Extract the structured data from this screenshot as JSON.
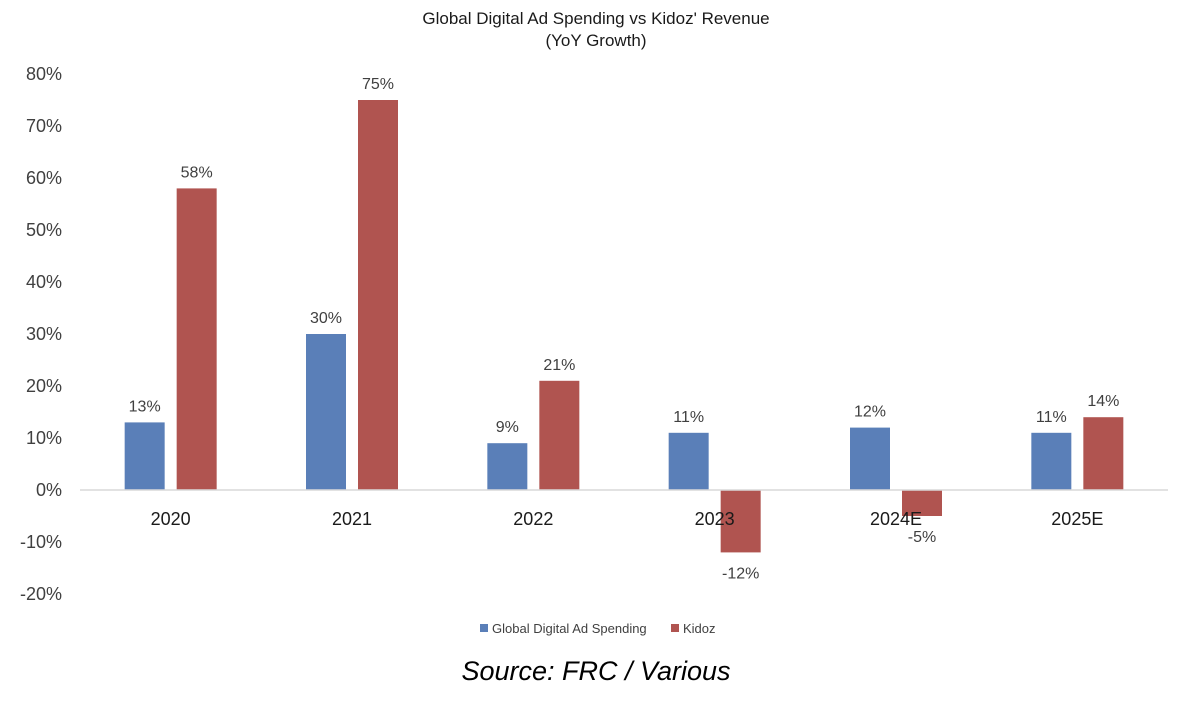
{
  "chart_data": {
    "type": "bar",
    "title": "Global Digital Ad Spending vs Kidoz' Revenue",
    "subtitle": "(YoY  Growth)",
    "categories": [
      "2020",
      "2021",
      "2022",
      "2023",
      "2024E",
      "2025E"
    ],
    "series": [
      {
        "name": "Global Digital Ad Spending",
        "color": "#5a7fb8",
        "values": [
          13,
          30,
          9,
          11,
          12,
          11
        ],
        "labels": [
          "13%",
          "30%",
          "9%",
          "11%",
          "12%",
          "11%"
        ]
      },
      {
        "name": "Kidoz",
        "color": "#b05450",
        "values": [
          58,
          75,
          21,
          -12,
          -5,
          14
        ],
        "labels": [
          "58%",
          "75%",
          "21%",
          "-12%",
          "-5%",
          "14%"
        ]
      }
    ],
    "ylim": [
      -20,
      80
    ],
    "yticks": [
      80,
      70,
      60,
      50,
      40,
      30,
      20,
      10,
      0,
      -10,
      -20
    ],
    "ytick_labels": [
      "80%",
      "70%",
      "60%",
      "50%",
      "40%",
      "30%",
      "20%",
      "10%",
      "0%",
      "-10%",
      "-20%"
    ],
    "grid": false,
    "legend_position": "bottom"
  },
  "source_text": "Source: FRC / Various"
}
